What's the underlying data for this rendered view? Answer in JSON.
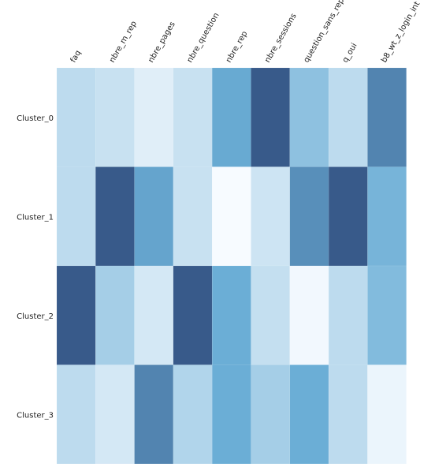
{
  "chart_data": {
    "type": "heatmap",
    "columns": [
      "faq",
      "nbre_m_rep",
      "nbre_pages",
      "nbre_question",
      "nbre_rep",
      "nbre_sessions",
      "question_sans_rep",
      "q_oui",
      "b8_wt_z_login_int"
    ],
    "rows": [
      "Cluster_0",
      "Cluster_1",
      "Cluster_2",
      "Cluster_3"
    ],
    "values": [
      [
        0.25,
        0.2,
        0.1,
        0.2,
        0.62,
        1.0,
        0.45,
        0.25,
        0.8
      ],
      [
        0.25,
        1.0,
        0.65,
        0.2,
        0.0,
        0.18,
        0.75,
        1.0,
        0.55
      ],
      [
        1.0,
        0.35,
        0.15,
        1.0,
        0.6,
        0.22,
        0.02,
        0.25,
        0.5
      ],
      [
        0.25,
        0.15,
        0.8,
        0.3,
        0.6,
        0.35,
        0.6,
        0.25,
        0.05
      ]
    ],
    "colormap": {
      "low": "#f7fbff",
      "mid": "#6baed6",
      "high": "#385a8a"
    },
    "title": "",
    "xlabel": "",
    "ylabel": "",
    "grid": false,
    "legend": "none"
  }
}
